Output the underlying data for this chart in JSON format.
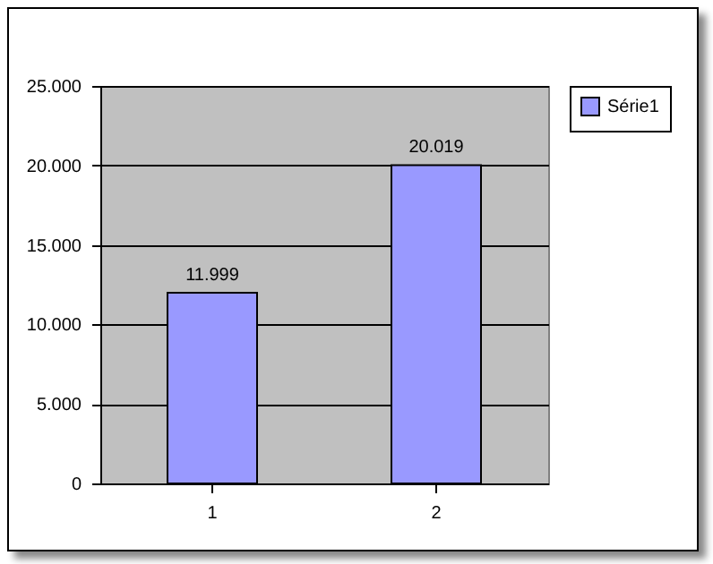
{
  "chart_data": {
    "type": "bar",
    "categories": [
      "1",
      "2"
    ],
    "series": [
      {
        "name": "Série1",
        "color": "#9999ff",
        "values": [
          11999,
          20019
        ]
      }
    ],
    "value_labels": [
      "11.999",
      "20.019"
    ],
    "ylim": [
      0,
      25000
    ],
    "yticks": [
      {
        "value": 0,
        "label": "0"
      },
      {
        "value": 5000,
        "label": "5.000"
      },
      {
        "value": 10000,
        "label": "10.000"
      },
      {
        "value": 15000,
        "label": "15.000"
      },
      {
        "value": 20000,
        "label": "20.000"
      },
      {
        "value": 25000,
        "label": "25.000"
      }
    ],
    "grid": "y",
    "legend": "right"
  }
}
